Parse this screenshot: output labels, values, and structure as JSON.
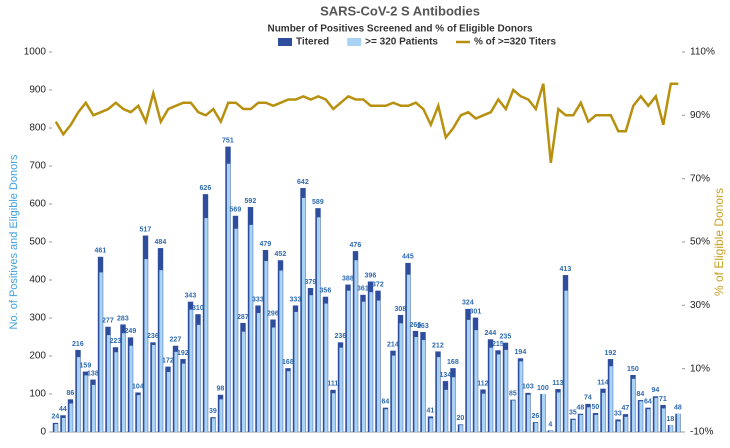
{
  "chart_data": {
    "type": "bar",
    "title": "SARS-CoV-2 S Antibodies",
    "subtitle": "Number of Positives Screened and % of Eligible Donors",
    "ylabel": "No. of Positives and Eligible Donors",
    "y2label": "% of Eligible Donors",
    "ylim": [
      0,
      1000
    ],
    "yticks": [
      0,
      100,
      200,
      300,
      400,
      500,
      600,
      700,
      800,
      900,
      1000
    ],
    "y2lim": [
      -10,
      110
    ],
    "y2ticks": [
      {
        "value": -10,
        "label": "-10%"
      },
      {
        "value": 10,
        "label": "10%"
      },
      {
        "value": 30,
        "label": "30%"
      },
      {
        "value": 50,
        "label": "50%"
      },
      {
        "value": 70,
        "label": "70%"
      },
      {
        "value": 90,
        "label": "90%"
      },
      {
        "value": 110,
        "label": "110%"
      }
    ],
    "categories": [
      null,
      null,
      null,
      null,
      null,
      null,
      null,
      null,
      null,
      null,
      null,
      null,
      null,
      null,
      null,
      null,
      null,
      null,
      null,
      null,
      null,
      null,
      null,
      null,
      null,
      null,
      null,
      null,
      null,
      null,
      null,
      null,
      null,
      null,
      null,
      null,
      null,
      null,
      null,
      null,
      null,
      null,
      null,
      null,
      null,
      null,
      null,
      null,
      null,
      null,
      null,
      null,
      null,
      null,
      null,
      null,
      null,
      null,
      null,
      null,
      null,
      null,
      null,
      null,
      null,
      null,
      null,
      null,
      null,
      null,
      null,
      null,
      null,
      null,
      null,
      null,
      null,
      null,
      null,
      null,
      null,
      null,
      null,
      null
    ],
    "series": [
      {
        "name": "Titered",
        "type": "bar",
        "color": "#2e4d9c",
        "labels": true,
        "values": [
          24,
          44,
          86,
          216,
          159,
          138,
          461,
          277,
          223,
          283,
          249,
          104,
          517,
          236,
          484,
          172,
          227,
          192,
          343,
          310,
          626,
          39,
          98,
          751,
          569,
          287,
          592,
          333,
          479,
          296,
          452,
          168,
          333,
          642,
          379,
          589,
          356,
          111,
          236,
          388,
          476,
          361,
          396,
          372,
          64,
          214,
          308,
          445,
          266,
          263,
          41,
          212,
          134,
          168,
          20,
          324,
          301,
          112,
          244,
          215,
          235,
          85,
          194,
          103,
          26,
          100,
          4,
          113,
          413,
          35,
          48,
          74,
          50,
          114,
          192,
          33,
          47,
          150,
          84,
          64,
          94,
          71,
          18,
          48
        ]
      },
      {
        "name": ">= 320 Patients",
        "type": "bar",
        "color": "#a9d3f5",
        "values": [
          21,
          37,
          75,
          197,
          149,
          124,
          420,
          255,
          210,
          260,
          227,
          97,
          455,
          229,
          426,
          158,
          211,
          180,
          322,
          282,
          563,
          36,
          86,
          706,
          535,
          264,
          545,
          313,
          450,
          275,
          425,
          160,
          316,
          616,
          360,
          565,
          338,
          102,
          222,
          372,
          452,
          343,
          368,
          346,
          60,
          201,
          286,
          414,
          250,
          242,
          36,
          197,
          111,
          144,
          18,
          295,
          268,
          101,
          222,
          204,
          216,
          83,
          186,
          98,
          24,
          100,
          3,
          104,
          372,
          32,
          45,
          65,
          45,
          103,
          173,
          28,
          40,
          140,
          81,
          60,
          90,
          62,
          18,
          48
        ]
      },
      {
        "name": "% of >=320 Titers",
        "type": "line",
        "axis": "y2",
        "color": "#b8900f",
        "values": [
          88,
          84,
          87,
          91,
          94,
          90,
          91,
          92,
          94,
          92,
          91,
          93,
          88,
          97,
          88,
          92,
          93,
          94,
          94,
          91,
          90,
          92,
          88,
          94,
          94,
          92,
          92,
          94,
          94,
          93,
          94,
          95,
          95,
          96,
          95,
          96,
          95,
          92,
          94,
          96,
          95,
          95,
          93,
          93,
          93,
          94,
          93,
          93,
          94,
          92,
          87,
          93,
          83,
          86,
          90,
          91,
          89,
          90,
          91,
          95,
          92,
          98,
          96,
          95,
          92,
          100,
          75,
          92,
          90,
          90,
          94,
          88,
          90,
          90,
          90,
          85,
          85,
          93,
          96,
          93,
          96,
          87,
          100,
          100
        ]
      }
    ]
  }
}
